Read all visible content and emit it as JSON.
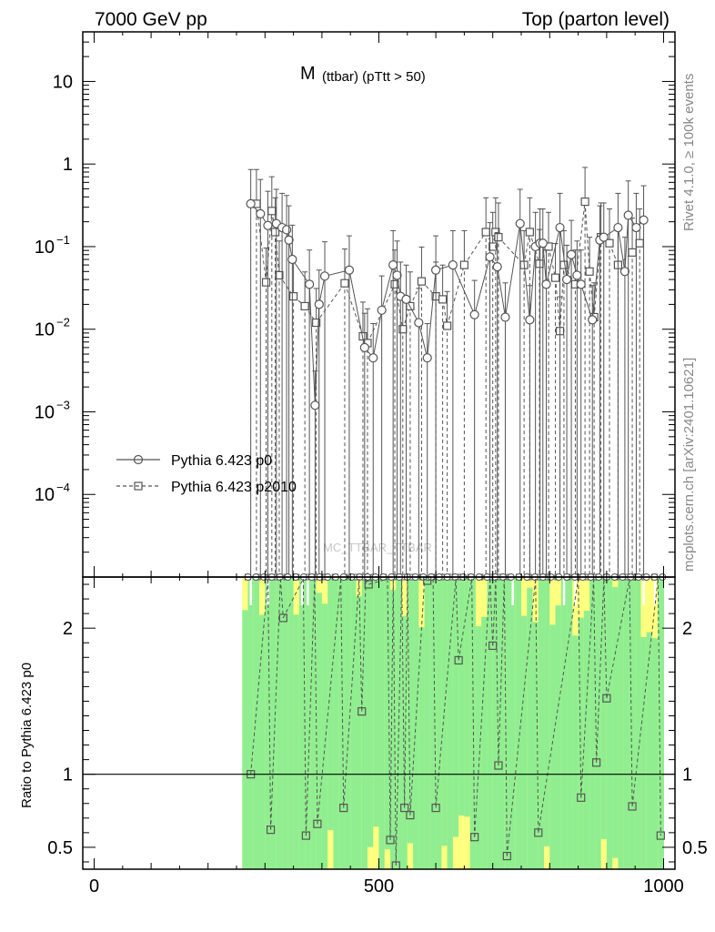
{
  "chart_data": {
    "type": "line",
    "header": {
      "left": "7000 GeV pp",
      "right": "Top (parton level)"
    },
    "title": {
      "main": "M",
      "sub": "(ttbar) (pTtt > 50)"
    },
    "watermark": "MC_TTBAR_TTBAR",
    "side_text": {
      "rivet": "Rivet 4.1.0, ≥ 100k events",
      "site": "mcplots.cern.ch [arXiv:2401.10621]"
    },
    "ratio_ylabel": "Ratio to Pythia 6.423 p0",
    "xlim": [
      -20,
      1020
    ],
    "xticks": [
      "0",
      "500",
      "1000"
    ],
    "upper_ylim_log10": [
      -5.0,
      1.6
    ],
    "upper_yticks": [
      {
        "exp": 1,
        "label": "10"
      },
      {
        "exp": 0,
        "label": "1"
      },
      {
        "exp": -1,
        "label": "10",
        "sup": "−1"
      },
      {
        "exp": -2,
        "label": "10",
        "sup": "−2"
      },
      {
        "exp": -3,
        "label": "10",
        "sup": "−3"
      },
      {
        "exp": -4,
        "label": "10",
        "sup": "−4"
      }
    ],
    "ratio_ylim": [
      0.35,
      2.35
    ],
    "ratio_yticks": [
      "0.5",
      "1",
      "2"
    ],
    "colors": {
      "series_main": "#555555",
      "band_inner": "#90ee90",
      "band_outer": "#ffff80",
      "frame": "#000000"
    },
    "series": [
      {
        "name": "Pythia 6.423 p0",
        "marker": "circle",
        "line": "solid",
        "points": [
          {
            "x": 275,
            "y": 0.33
          },
          {
            "x": 292,
            "y": 0.25
          },
          {
            "x": 305,
            "y": 0.18
          },
          {
            "x": 320,
            "y": 0.19
          },
          {
            "x": 330,
            "y": 0.17
          },
          {
            "x": 338,
            "y": 0.16
          },
          {
            "x": 342,
            "y": 0.12
          },
          {
            "x": 348,
            "y": 0.07
          },
          {
            "x": 378,
            "y": 0.035
          },
          {
            "x": 388,
            "y": 0.0012
          },
          {
            "x": 395,
            "y": 0.02
          },
          {
            "x": 405,
            "y": 0.044
          },
          {
            "x": 448,
            "y": 0.052
          },
          {
            "x": 475,
            "y": 0.006
          },
          {
            "x": 490,
            "y": 0.0045
          },
          {
            "x": 505,
            "y": 0.017
          },
          {
            "x": 525,
            "y": 0.06
          },
          {
            "x": 532,
            "y": 0.045
          },
          {
            "x": 538,
            "y": 0.025
          },
          {
            "x": 548,
            "y": 0.023
          },
          {
            "x": 570,
            "y": 0.012
          },
          {
            "x": 585,
            "y": 0.0045
          },
          {
            "x": 600,
            "y": 0.052
          },
          {
            "x": 630,
            "y": 0.06
          },
          {
            "x": 668,
            "y": 0.015
          },
          {
            "x": 695,
            "y": 0.075
          },
          {
            "x": 708,
            "y": 0.057
          },
          {
            "x": 722,
            "y": 0.014
          },
          {
            "x": 748,
            "y": 0.19
          },
          {
            "x": 765,
            "y": 0.013
          },
          {
            "x": 775,
            "y": 0.1
          },
          {
            "x": 783,
            "y": 0.11
          },
          {
            "x": 788,
            "y": 0.11
          },
          {
            "x": 794,
            "y": 0.035
          },
          {
            "x": 818,
            "y": 0.17
          },
          {
            "x": 830,
            "y": 0.04
          },
          {
            "x": 838,
            "y": 0.08
          },
          {
            "x": 848,
            "y": 0.045
          },
          {
            "x": 855,
            "y": 0.035
          },
          {
            "x": 875,
            "y": 0.013
          },
          {
            "x": 888,
            "y": 0.12
          },
          {
            "x": 895,
            "y": 0.13
          },
          {
            "x": 920,
            "y": 0.17
          },
          {
            "x": 932,
            "y": 0.05
          },
          {
            "x": 938,
            "y": 0.24
          },
          {
            "x": 952,
            "y": 0.17
          },
          {
            "x": 965,
            "y": 0.21
          }
        ]
      },
      {
        "name": "Pythia 6.423 p2010",
        "marker": "square",
        "line": "dashed",
        "points": [
          {
            "x": 285,
            "y": 0.33
          },
          {
            "x": 302,
            "y": 0.037
          },
          {
            "x": 312,
            "y": 0.27
          },
          {
            "x": 318,
            "y": 0.15
          },
          {
            "x": 325,
            "y": 0.045
          },
          {
            "x": 350,
            "y": 0.025
          },
          {
            "x": 370,
            "y": 0.019
          },
          {
            "x": 390,
            "y": 0.012
          },
          {
            "x": 440,
            "y": 0.036
          },
          {
            "x": 472,
            "y": 0.0082
          },
          {
            "x": 480,
            "y": 0.0068
          },
          {
            "x": 528,
            "y": 0.035
          },
          {
            "x": 542,
            "y": 0.01
          },
          {
            "x": 555,
            "y": 0.019
          },
          {
            "x": 575,
            "y": 0.038
          },
          {
            "x": 600,
            "y": 0.025
          },
          {
            "x": 612,
            "y": 0.023
          },
          {
            "x": 620,
            "y": 0.011
          },
          {
            "x": 650,
            "y": 0.06
          },
          {
            "x": 688,
            "y": 0.15
          },
          {
            "x": 700,
            "y": 0.1
          },
          {
            "x": 705,
            "y": 0.15
          },
          {
            "x": 710,
            "y": 0.13
          },
          {
            "x": 755,
            "y": 0.06
          },
          {
            "x": 765,
            "y": 0.15
          },
          {
            "x": 782,
            "y": 0.062
          },
          {
            "x": 798,
            "y": 0.1
          },
          {
            "x": 810,
            "y": 0.042
          },
          {
            "x": 818,
            "y": 0.0095
          },
          {
            "x": 825,
            "y": 0.06
          },
          {
            "x": 845,
            "y": 0.035
          },
          {
            "x": 862,
            "y": 0.35
          },
          {
            "x": 870,
            "y": 0.05
          },
          {
            "x": 878,
            "y": 0.014
          },
          {
            "x": 890,
            "y": 0.13
          },
          {
            "x": 905,
            "y": 0.11
          },
          {
            "x": 920,
            "y": 0.06
          },
          {
            "x": 945,
            "y": 0.085
          },
          {
            "x": 958,
            "y": 0.11
          }
        ]
      }
    ],
    "ratio_points": [
      {
        "x": 275,
        "r": 1.0
      },
      {
        "x": 310,
        "r": 0.62
      },
      {
        "x": 332,
        "r": 2.07
      },
      {
        "x": 372,
        "r": 0.58
      },
      {
        "x": 392,
        "r": 0.66
      },
      {
        "x": 438,
        "r": 0.77
      },
      {
        "x": 470,
        "r": 1.43
      },
      {
        "x": 482,
        "r": 2.3
      },
      {
        "x": 520,
        "r": 0.55
      },
      {
        "x": 530,
        "r": 0.35
      },
      {
        "x": 545,
        "r": 0.77
      },
      {
        "x": 555,
        "r": 0.72
      },
      {
        "x": 585,
        "r": 2.33
      },
      {
        "x": 600,
        "r": 0.77
      },
      {
        "x": 640,
        "r": 1.78
      },
      {
        "x": 668,
        "r": 0.57
      },
      {
        "x": 700,
        "r": 1.88
      },
      {
        "x": 710,
        "r": 1.06
      },
      {
        "x": 725,
        "r": 0.44
      },
      {
        "x": 780,
        "r": 0.6
      },
      {
        "x": 855,
        "r": 0.84
      },
      {
        "x": 882,
        "r": 1.08
      },
      {
        "x": 900,
        "r": 1.52
      },
      {
        "x": 945,
        "r": 0.78
      },
      {
        "x": 995,
        "r": 0.58
      }
    ]
  }
}
